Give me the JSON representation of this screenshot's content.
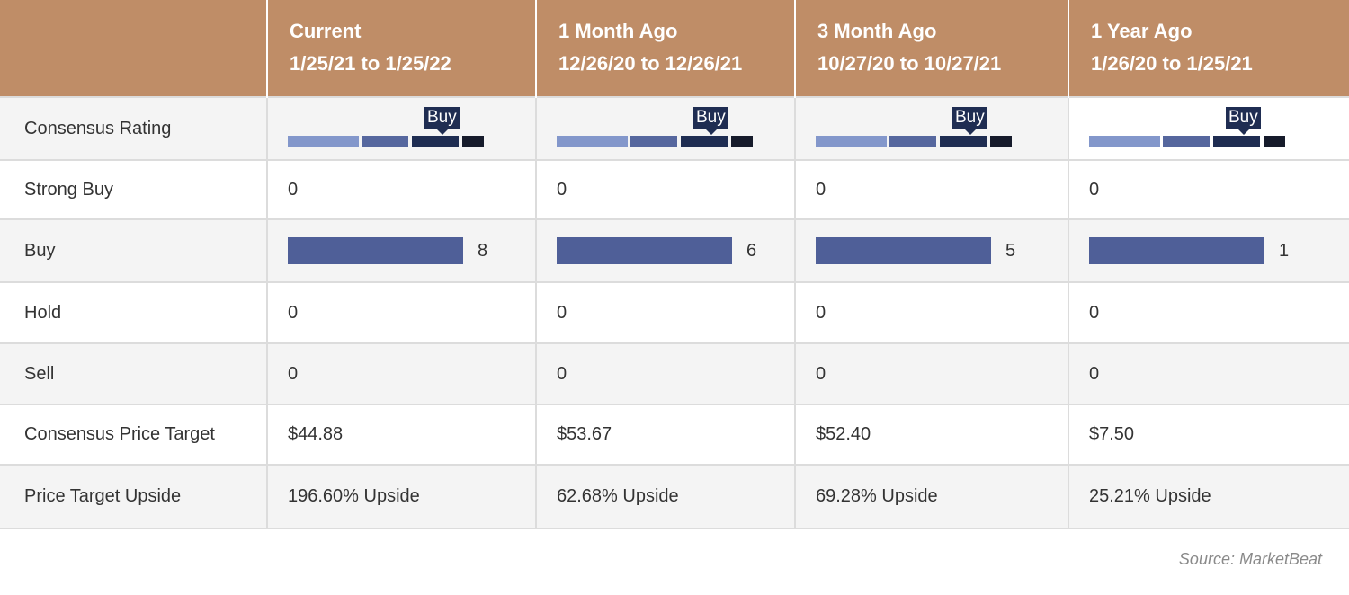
{
  "header": {
    "periods": [
      {
        "name": "Current",
        "range": "1/25/21 to 1/25/22"
      },
      {
        "name": "1 Month Ago",
        "range": "12/26/20 to 12/26/21"
      },
      {
        "name": "3 Month Ago",
        "range": "10/27/20 to 10/27/21"
      },
      {
        "name": "1 Year Ago",
        "range": "1/26/20 to 1/25/21"
      }
    ]
  },
  "rows": {
    "consensus_rating": {
      "label": "Consensus Rating",
      "values": [
        "Buy",
        "Buy",
        "Buy",
        "Buy"
      ]
    },
    "strong_buy": {
      "label": "Strong Buy",
      "values": [
        "0",
        "0",
        "0",
        "0"
      ]
    },
    "buy": {
      "label": "Buy",
      "values": [
        "8",
        "6",
        "5",
        "1"
      ]
    },
    "hold": {
      "label": "Hold",
      "values": [
        "0",
        "0",
        "0",
        "0"
      ]
    },
    "sell": {
      "label": "Sell",
      "values": [
        "0",
        "0",
        "0",
        "0"
      ]
    },
    "price_target": {
      "label": "Consensus Price Target",
      "values": [
        "$44.88",
        "$53.67",
        "$52.40",
        "$7.50"
      ]
    },
    "upside": {
      "label": "Price Target Upside",
      "values": [
        "196.60% Upside",
        "62.68% Upside",
        "69.28% Upside",
        "25.21% Upside"
      ]
    }
  },
  "chart_data": {
    "type": "table",
    "title": "",
    "categories": [
      "Current",
      "1 Month Ago",
      "3 Month Ago",
      "1 Year Ago"
    ],
    "series": [
      {
        "name": "Strong Buy",
        "values": [
          0,
          0,
          0,
          0
        ]
      },
      {
        "name": "Buy",
        "values": [
          8,
          6,
          5,
          1
        ]
      },
      {
        "name": "Hold",
        "values": [
          0,
          0,
          0,
          0
        ]
      },
      {
        "name": "Sell",
        "values": [
          0,
          0,
          0,
          0
        ]
      },
      {
        "name": "Consensus Price Target",
        "values": [
          44.88,
          53.67,
          52.4,
          7.5
        ]
      },
      {
        "name": "Price Target Upside (%)",
        "values": [
          196.6,
          62.68,
          69.28,
          25.21
        ]
      }
    ],
    "consensus_rating": [
      "Buy",
      "Buy",
      "Buy",
      "Buy"
    ]
  },
  "colors": {
    "header_bg": "#bf8d67",
    "bar": "#4f5f98",
    "gauge": [
      "#8397cb",
      "#56679e",
      "#1f2d52",
      "#161b2b"
    ]
  },
  "footer": {
    "source": "Source: MarketBeat"
  }
}
